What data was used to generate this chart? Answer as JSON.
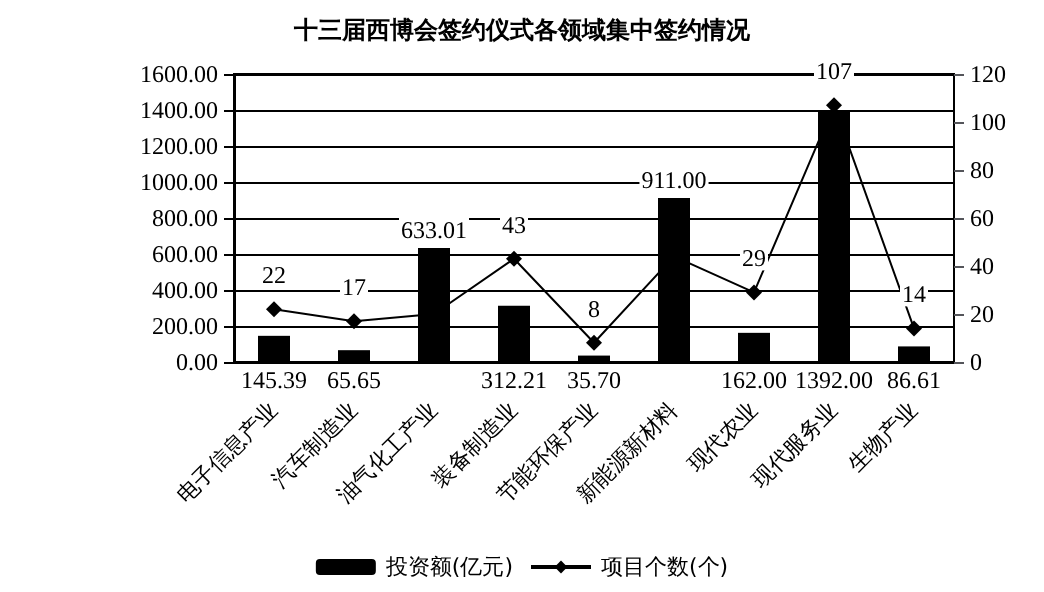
{
  "chart_data": {
    "type": "bar",
    "title": "十三届西博会签约仪式各领域集中签约情况",
    "categories": [
      "电子信息产业",
      "汽车制造业",
      "油气化工产业",
      "装备制造业",
      "节能环保产业",
      "新能源新材料",
      "现代农业",
      "现代服务业",
      "生物产业"
    ],
    "series": [
      {
        "name": "投资额(亿元)",
        "color": "#000000",
        "values": [
          145.39,
          65.65,
          633.01,
          312.21,
          35.7,
          911.0,
          162.0,
          1392.0,
          86.61
        ],
        "value_labels": [
          "145.39",
          "65.65",
          "633.01",
          "312.21",
          "35.70",
          "911.00",
          "162.00",
          "1392.00",
          "86.61"
        ]
      },
      {
        "name": "项目个数(个)",
        "type": "line",
        "axis": "y2",
        "color": "#000000",
        "marker": "diamond",
        "values": [
          22,
          17,
          20,
          43,
          8,
          44,
          29,
          107,
          14
        ],
        "value_labels": [
          "22",
          "17",
          null,
          "43",
          "8",
          null,
          "29",
          "107",
          "14"
        ]
      }
    ],
    "ylim": [
      0,
      1600
    ],
    "yticks": [
      {
        "value": 0,
        "label": "0.00"
      },
      {
        "value": 200,
        "label": "200.00"
      },
      {
        "value": 400,
        "label": "400.00"
      },
      {
        "value": 600,
        "label": "600.00"
      },
      {
        "value": 800,
        "label": "800.00"
      },
      {
        "value": 1000,
        "label": "1000.00"
      },
      {
        "value": 1200,
        "label": "1200.00"
      },
      {
        "value": 1400,
        "label": "1400.00"
      },
      {
        "value": 1600,
        "label": "1600.00"
      }
    ],
    "y2lim": [
      0,
      120
    ],
    "y2ticks": [
      0,
      20,
      40,
      60,
      80,
      100,
      120
    ],
    "grid": "y",
    "legend": "bottom"
  }
}
